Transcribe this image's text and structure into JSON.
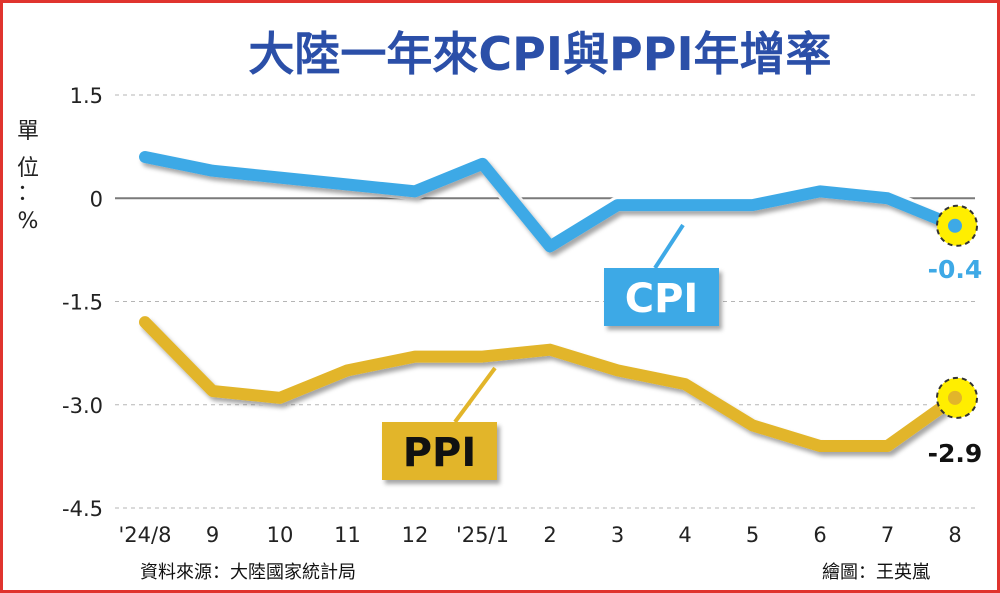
{
  "chart_data": {
    "type": "line",
    "title": "大陸一年來CPI與PPI年增率",
    "ylabel": "單位：%",
    "ylabel_chars": [
      "單",
      "位",
      "：",
      "%"
    ],
    "categories": [
      "'24/8",
      "9",
      "10",
      "11",
      "12",
      "'25/1",
      "2",
      "3",
      "4",
      "5",
      "6",
      "7",
      "8"
    ],
    "yticks": [
      1.5,
      0,
      -1.5,
      -3.0,
      -4.5
    ],
    "ytick_labels": [
      "1.5",
      "0",
      "-1.5",
      "-3.0",
      "-4.5"
    ],
    "ylim": [
      -4.5,
      1.5
    ],
    "grid": "horizontal-dashed",
    "series": [
      {
        "name": "CPI",
        "color": "#3ea9e6",
        "label_bg": "#3ea9e6",
        "values": [
          0.6,
          0.4,
          0.3,
          0.2,
          0.1,
          0.5,
          -0.7,
          -0.1,
          -0.1,
          -0.1,
          0.1,
          0.0,
          -0.4
        ],
        "end_label": "-0.4"
      },
      {
        "name": "PPI",
        "color": "#e2b52a",
        "label_bg": "#e2b52a",
        "values": [
          -1.8,
          -2.8,
          -2.9,
          -2.5,
          -2.3,
          -2.3,
          -2.2,
          -2.5,
          -2.7,
          -3.3,
          -3.6,
          -3.6,
          -2.9
        ],
        "end_label": "-2.9"
      }
    ],
    "highlight_color": "#ffee00"
  },
  "source": "資料來源：大陸國家統計局",
  "credit": "繪圖：王英嵐"
}
